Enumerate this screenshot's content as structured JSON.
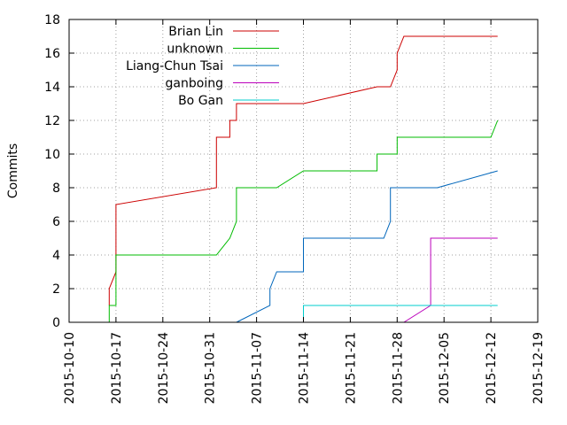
{
  "chart_data": {
    "type": "line",
    "title": "",
    "xlabel": "",
    "ylabel": "Commits",
    "ylim": [
      0,
      18
    ],
    "yticks": [
      0,
      2,
      4,
      6,
      8,
      10,
      12,
      14,
      16,
      18
    ],
    "xlim": [
      "2015-10-10",
      "2015-12-19"
    ],
    "xticks": [
      "2015-10-10",
      "2015-10-17",
      "2015-10-24",
      "2015-10-31",
      "2015-11-07",
      "2015-11-14",
      "2015-11-21",
      "2015-11-28",
      "2015-12-05",
      "2015-12-12",
      "2015-12-19"
    ],
    "grid": true,
    "legend_position": "top-left",
    "series": [
      {
        "name": "Brian Lin",
        "color": "#cc0000",
        "points": [
          [
            "2015-10-16",
            1
          ],
          [
            "2015-10-16",
            2
          ],
          [
            "2015-10-17",
            3
          ],
          [
            "2015-10-17",
            7
          ],
          [
            "2015-11-01",
            8
          ],
          [
            "2015-11-01",
            9
          ],
          [
            "2015-11-01",
            11
          ],
          [
            "2015-11-03",
            11
          ],
          [
            "2015-11-03",
            12
          ],
          [
            "2015-11-04",
            12
          ],
          [
            "2015-11-04",
            13
          ],
          [
            "2015-11-14",
            13
          ],
          [
            "2015-11-25",
            14
          ],
          [
            "2015-11-27",
            14
          ],
          [
            "2015-11-28",
            15
          ],
          [
            "2015-11-28",
            16
          ],
          [
            "2015-11-29",
            17
          ],
          [
            "2015-12-13",
            17
          ]
        ]
      },
      {
        "name": "unknown",
        "color": "#00bb00",
        "points": [
          [
            "2015-10-16",
            0
          ],
          [
            "2015-10-16",
            1
          ],
          [
            "2015-10-17",
            1
          ],
          [
            "2015-10-17",
            4
          ],
          [
            "2015-11-01",
            4
          ],
          [
            "2015-11-03",
            5
          ],
          [
            "2015-11-04",
            6
          ],
          [
            "2015-11-04",
            8
          ],
          [
            "2015-11-10",
            8
          ],
          [
            "2015-11-14",
            9
          ],
          [
            "2015-11-25",
            9
          ],
          [
            "2015-11-25",
            10
          ],
          [
            "2015-11-28",
            10
          ],
          [
            "2015-11-28",
            11
          ],
          [
            "2015-12-12",
            11
          ],
          [
            "2015-12-13",
            12
          ]
        ]
      },
      {
        "name": "Liang-Chun Tsai",
        "color": "#0066bb",
        "points": [
          [
            "2015-11-04",
            0
          ],
          [
            "2015-11-09",
            1
          ],
          [
            "2015-11-09",
            2
          ],
          [
            "2015-11-10",
            3
          ],
          [
            "2015-11-14",
            3
          ],
          [
            "2015-11-14",
            5
          ],
          [
            "2015-11-26",
            5
          ],
          [
            "2015-11-27",
            6
          ],
          [
            "2015-11-27",
            8
          ],
          [
            "2015-12-04",
            8
          ],
          [
            "2015-12-13",
            9
          ]
        ]
      },
      {
        "name": "ganboing",
        "color": "#bb00bb",
        "points": [
          [
            "2015-11-29",
            0
          ],
          [
            "2015-12-03",
            1
          ],
          [
            "2015-12-03",
            5
          ],
          [
            "2015-12-13",
            5
          ]
        ]
      },
      {
        "name": "Bo Gan",
        "color": "#00cccc",
        "points": [
          [
            "2015-11-14",
            0
          ],
          [
            "2015-11-14",
            1
          ],
          [
            "2015-12-13",
            1
          ]
        ]
      }
    ]
  }
}
